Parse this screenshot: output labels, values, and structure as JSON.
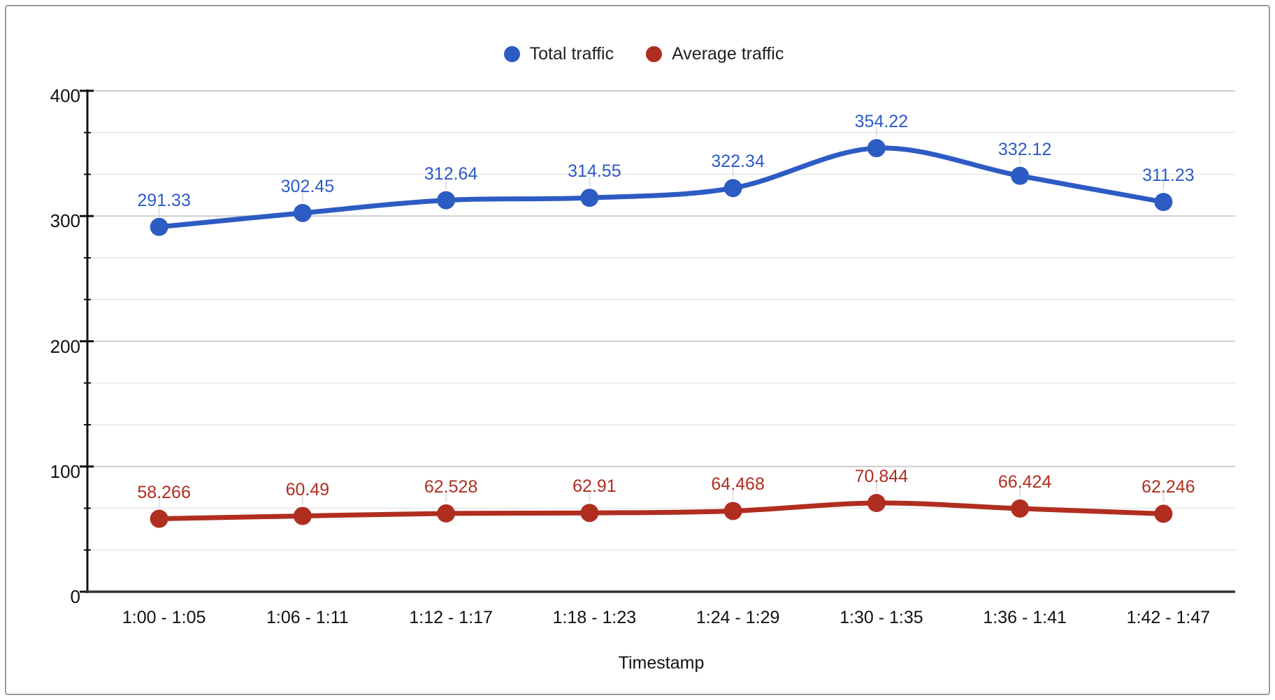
{
  "chart_data": {
    "type": "line",
    "title": "",
    "xlabel": "Timestamp",
    "ylabel": "",
    "categories": [
      "1:00 - 1:05",
      "1:06 - 1:11",
      "1:12 - 1:17",
      "1:18 - 1:23",
      "1:24 - 1:29",
      "1:30 - 1:35",
      "1:36 - 1:41",
      "1:42 - 1:47"
    ],
    "series": [
      {
        "name": "Total traffic",
        "color": "#2d5bc4",
        "values": [
          291.33,
          302.45,
          312.64,
          314.55,
          322.34,
          354.22,
          332.12,
          311.23
        ],
        "labels": [
          "291.33",
          "302.45",
          "312.64",
          "314.55",
          "322.34",
          "354.22",
          "332.12",
          "311.23"
        ]
      },
      {
        "name": "Average traffic",
        "color": "#b02e20",
        "values": [
          58.266,
          60.49,
          62.528,
          62.91,
          64.468,
          70.844,
          66.424,
          62.246
        ],
        "labels": [
          "58.266",
          "60.49",
          "62.528",
          "62.91",
          "64.468",
          "70.844",
          "66.424",
          "62.246"
        ]
      }
    ],
    "ylim": [
      0,
      400
    ],
    "y_major_ticks": [
      {
        "label": "400",
        "value": 400
      },
      {
        "label": "300",
        "value": 300
      },
      {
        "label": "200",
        "value": 200
      },
      {
        "label": "100",
        "value": 100
      },
      {
        "label": "0",
        "value": 0
      }
    ],
    "minor_gridlines_per_interval": 2,
    "grid": true,
    "smooth_lines": true,
    "point_labels_visible": true,
    "legend_position": "top-center"
  },
  "styles": {
    "major_gridline_color": "#cccccc",
    "minor_gridline_color": "#ececec",
    "leader_line_color": "#e0e0e0",
    "y_axis_color": "#111111",
    "x_axis_color": "#333333",
    "card_border_color": "#9a9a9a",
    "legend_text_color": "#212121"
  }
}
